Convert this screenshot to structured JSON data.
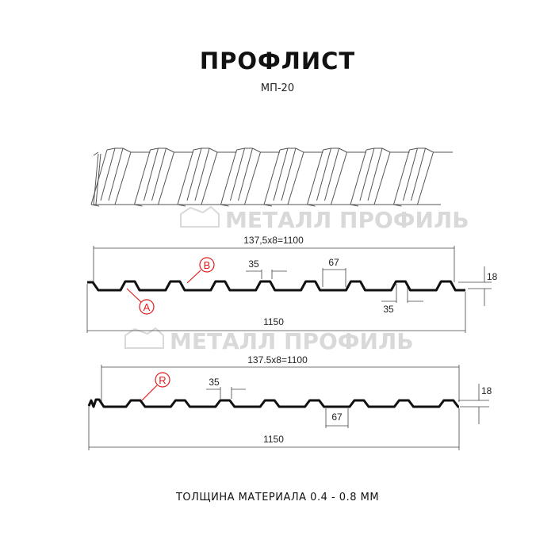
{
  "title": "ПРОФЛИСТ",
  "subtitle": "МП-20",
  "footer": "ТОЛЩИНА МАТЕРИАЛА 0.4 - 0.8 ММ",
  "watermark": "МЕТАЛЛ ПРОФИЛЬ",
  "colors": {
    "profile": "#111111",
    "callout": "#e21b1b",
    "watermark": "#d9d9d9",
    "dimension": "#333333"
  },
  "profile_a": {
    "pitch_dim": "137,5x8=1100",
    "width_dim": "1150",
    "top_width": "35",
    "bottom_width": "35",
    "rib_dim": "67",
    "height_dim": "18",
    "callout_b": "B",
    "callout_a": "A"
  },
  "profile_b": {
    "pitch_dim": "137.5x8=1100",
    "width_dim": "1150",
    "top_width": "35",
    "rib_dim": "67",
    "height_dim": "18",
    "callout_r": "R"
  }
}
